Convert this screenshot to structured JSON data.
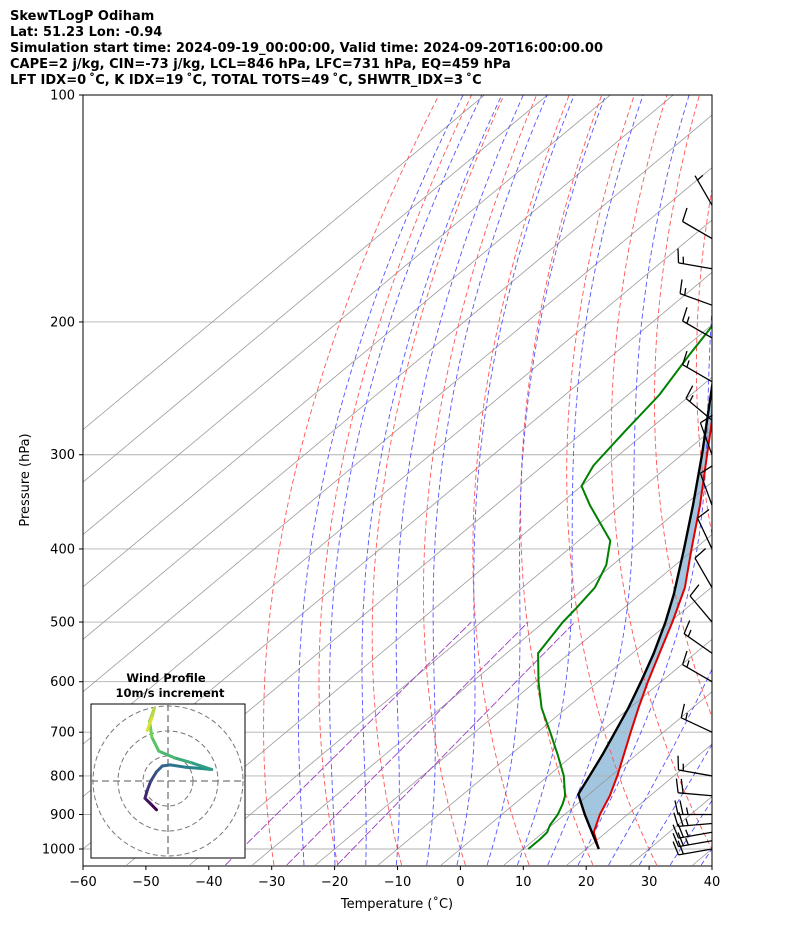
{
  "header": {
    "title": "SkewTLogP Odiham",
    "location": "Lat: 51.23   Lon: -0.94",
    "times": "Simulation start time: 2024-09-19_00:00:00, Valid time: 2024-09-20T16:00:00.00",
    "params": "CAPE=2 j/kg, CIN=-73 j/kg, LCL=846 hPa, LFC=731 hPa, EQ=459 hPa",
    "indices": "LFT IDX=0 ˚C, K IDX=19 ˚C, TOTAL TOTS=49 ˚C, SHWTR_IDX=3 ˚C"
  },
  "colors": {
    "temperature": "#e00000",
    "dewpoint": "#008000",
    "parcel": "#000000",
    "cape_fill": "#7aaed3",
    "dry_adiabat": "#ff5555",
    "moist_adiabat": "#5555ff",
    "mixing_ratio": "#9a3fbf",
    "isotherm": "#999999",
    "isobar": "#b0b0b0"
  },
  "chart_data": {
    "type": "skewt",
    "xlabel": "Temperature (˚C)",
    "ylabel": "Pressure (hPa)",
    "xlim": [
      -60,
      40
    ],
    "ylim": [
      1050,
      100
    ],
    "xticks": [
      -60,
      -50,
      -40,
      -30,
      -20,
      -10,
      0,
      10,
      20,
      30,
      40
    ],
    "yticks": [
      1000,
      900,
      800,
      700,
      600,
      500,
      400,
      300,
      200,
      100
    ],
    "temperature": [
      [
        1000,
        22.0
      ],
      [
        950,
        18.0
      ],
      [
        900,
        15.6
      ],
      [
        850,
        13.6
      ],
      [
        800,
        11.0
      ],
      [
        750,
        8.0
      ],
      [
        700,
        4.8
      ],
      [
        650,
        1.4
      ],
      [
        600,
        -2.1
      ],
      [
        550,
        -5.7
      ],
      [
        500,
        -9.6
      ],
      [
        450,
        -14.2
      ],
      [
        400,
        -20.5
      ],
      [
        350,
        -27.5
      ],
      [
        300,
        -36.0
      ],
      [
        270,
        -41.8
      ],
      [
        250,
        -46.5
      ],
      [
        230,
        -50.5
      ],
      [
        210,
        -53.0
      ],
      [
        200,
        -54.0
      ],
      [
        180,
        -55.5
      ],
      [
        160,
        -57.0
      ],
      [
        150,
        -58.0
      ],
      [
        140,
        -59.0
      ],
      [
        130,
        -60.0
      ],
      [
        120,
        -61.0
      ],
      [
        110,
        -62.0
      ],
      [
        100,
        -63.0
      ]
    ],
    "dewpoint": [
      [
        1000,
        10.8
      ],
      [
        970,
        10.8
      ],
      [
        950,
        10.6
      ],
      [
        930,
        9.7
      ],
      [
        900,
        8.9
      ],
      [
        870,
        7.6
      ],
      [
        850,
        6.5
      ],
      [
        800,
        2.5
      ],
      [
        750,
        -2.5
      ],
      [
        700,
        -8.0
      ],
      [
        650,
        -14.0
      ],
      [
        600,
        -19.5
      ],
      [
        550,
        -25.0
      ],
      [
        500,
        -27.0
      ],
      [
        480,
        -27.5
      ],
      [
        450,
        -28.5
      ],
      [
        420,
        -31.0
      ],
      [
        390,
        -35.0
      ],
      [
        350,
        -45.0
      ],
      [
        330,
        -50.0
      ],
      [
        310,
        -52.0
      ],
      [
        280,
        -53.5
      ],
      [
        250,
        -55.0
      ],
      [
        220,
        -58.0
      ],
      [
        200,
        -60.0
      ],
      [
        185,
        -61.5
      ],
      [
        170,
        -64.5
      ],
      [
        155,
        -68.5
      ],
      [
        145,
        -70.0
      ],
      [
        135,
        -70.5
      ],
      [
        125,
        -70.5
      ],
      [
        115,
        -70.5
      ],
      [
        100,
        -70.0
      ]
    ],
    "parcel": [
      [
        1000,
        22.0
      ],
      [
        950,
        17.7
      ],
      [
        900,
        13.2
      ],
      [
        846,
        8.3
      ],
      [
        800,
        6.6
      ],
      [
        750,
        4.6
      ],
      [
        700,
        2.3
      ],
      [
        650,
        -0.2
      ],
      [
        600,
        -3.2
      ],
      [
        550,
        -6.6
      ],
      [
        500,
        -10.7
      ],
      [
        459,
        -14.7
      ],
      [
        400,
        -21.7
      ],
      [
        350,
        -28.6
      ],
      [
        300,
        -36.8
      ],
      [
        250,
        -46.8
      ],
      [
        200,
        -59.0
      ],
      [
        150,
        -74.0
      ],
      [
        100,
        -94.0
      ]
    ],
    "wind_profile": {
      "title": "Wind Profile",
      "subtitle": "10m/s increment"
    },
    "wind_barbs": [
      {
        "p": 1000,
        "dir": 260,
        "speed_kt": 20
      },
      {
        "p": 975,
        "dir": 260,
        "speed_kt": 25
      },
      {
        "p": 950,
        "dir": 260,
        "speed_kt": 25
      },
      {
        "p": 925,
        "dir": 265,
        "speed_kt": 25
      },
      {
        "p": 900,
        "dir": 270,
        "speed_kt": 25
      },
      {
        "p": 850,
        "dir": 275,
        "speed_kt": 20
      },
      {
        "p": 800,
        "dir": 280,
        "speed_kt": 15
      },
      {
        "p": 700,
        "dir": 295,
        "speed_kt": 15
      },
      {
        "p": 600,
        "dir": 300,
        "speed_kt": 15
      },
      {
        "p": 550,
        "dir": 305,
        "speed_kt": 15
      },
      {
        "p": 500,
        "dir": 320,
        "speed_kt": 10
      },
      {
        "p": 450,
        "dir": 330,
        "speed_kt": 10
      },
      {
        "p": 400,
        "dir": 335,
        "speed_kt": 10
      },
      {
        "p": 350,
        "dir": 340,
        "speed_kt": 10
      },
      {
        "p": 300,
        "dir": 340,
        "speed_kt": 10
      },
      {
        "p": 270,
        "dir": 310,
        "speed_kt": 15
      },
      {
        "p": 240,
        "dir": 300,
        "speed_kt": 15
      },
      {
        "p": 210,
        "dir": 300,
        "speed_kt": 15
      },
      {
        "p": 190,
        "dir": 290,
        "speed_kt": 15
      },
      {
        "p": 170,
        "dir": 280,
        "speed_kt": 15
      },
      {
        "p": 155,
        "dir": 300,
        "speed_kt": 10
      },
      {
        "p": 140,
        "dir": 330,
        "speed_kt": 5
      }
    ],
    "hodograph": [
      [
        -1.0,
        -2.5
      ],
      [
        -1.5,
        -2.0
      ],
      [
        -2.0,
        -1.5
      ],
      [
        -1.8,
        -0.8
      ],
      [
        -1.5,
        0.0
      ],
      [
        -1.0,
        0.8
      ],
      [
        -0.5,
        1.3
      ],
      [
        0.2,
        1.4
      ],
      [
        1.5,
        1.2
      ],
      [
        2.8,
        1.1
      ],
      [
        3.8,
        1.0
      ],
      [
        2.0,
        1.6
      ],
      [
        0.6,
        2.0
      ],
      [
        -0.8,
        2.6
      ],
      [
        -1.4,
        3.8
      ],
      [
        -1.6,
        5.2
      ],
      [
        -1.2,
        6.3
      ],
      [
        -1.4,
        5.5
      ],
      [
        -1.8,
        4.4
      ]
    ]
  }
}
